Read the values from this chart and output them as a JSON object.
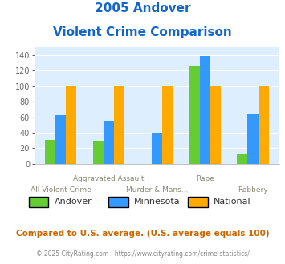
{
  "title_line1": "2005 Andover",
  "title_line2": "Violent Crime Comparison",
  "categories": [
    "All Violent Crime",
    "Aggravated Assault",
    "Murder & Mans...",
    "Rape",
    "Robbery"
  ],
  "series": {
    "Andover": [
      31,
      30,
      0,
      127,
      13
    ],
    "Minnesota": [
      63,
      55,
      40,
      139,
      65
    ],
    "National": [
      100,
      100,
      100,
      100,
      100
    ]
  },
  "colors": {
    "Andover": "#66cc33",
    "Minnesota": "#3399ff",
    "National": "#ffaa00"
  },
  "ylim": [
    0,
    150
  ],
  "yticks": [
    0,
    20,
    40,
    60,
    80,
    100,
    120,
    140
  ],
  "legend_labels": [
    "Andover",
    "Minnesota",
    "National"
  ],
  "footnote1": "Compared to U.S. average. (U.S. average equals 100)",
  "footnote2": "© 2025 CityRating.com - https://www.cityrating.com/crime-statistics/",
  "title_color": "#1166cc",
  "bg_color": "#ddeeff",
  "footnote1_color": "#cc6600",
  "footnote2_color": "#888888",
  "bar_width": 0.22
}
